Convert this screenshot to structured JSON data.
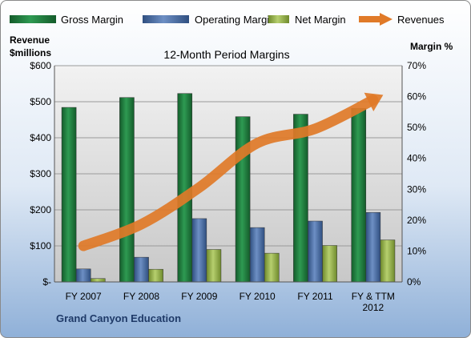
{
  "chart_data": {
    "type": "bar",
    "title": "12-Month Period Margins",
    "left_axis_title": [
      "Revenue",
      "$millions"
    ],
    "right_axis_title": "Margin %",
    "footer_label": "Grand Canyon Education",
    "categories": [
      [
        "FY 2007"
      ],
      [
        "FY 2008"
      ],
      [
        "FY 2009"
      ],
      [
        "FY 2010"
      ],
      [
        "FY 2011"
      ],
      [
        "FY & TTM",
        "2012"
      ]
    ],
    "left_ticks": [
      "$-",
      "$100",
      "$200",
      "$300",
      "$400",
      "$500",
      "$600"
    ],
    "right_ticks": [
      "0%",
      "10%",
      "20%",
      "30%",
      "40%",
      "50%",
      "60%",
      "70%"
    ],
    "ylim_left": [
      0,
      600
    ],
    "ylim_right": [
      0,
      70
    ],
    "series": [
      {
        "name": "Gross Margin",
        "type": "bar",
        "axis": "right",
        "color": "#1e7a3c",
        "values": [
          56.5,
          59.7,
          61.0,
          53.5,
          54.3,
          56.2
        ]
      },
      {
        "name": "Operating Margin",
        "type": "bar",
        "axis": "right",
        "color": "#4a6fa8",
        "values": [
          4.2,
          8.0,
          20.5,
          17.6,
          19.7,
          22.5
        ]
      },
      {
        "name": "Net Margin",
        "type": "bar",
        "axis": "right",
        "color": "#94b04a",
        "values": [
          1.1,
          4.1,
          10.5,
          9.3,
          11.8,
          13.6
        ]
      },
      {
        "name": "Revenues",
        "type": "line",
        "axis": "left",
        "color": "#e07a28",
        "values": [
          100,
          160,
          262,
          385,
          425,
          505
        ]
      }
    ],
    "legend_position": "top",
    "grid": true
  }
}
